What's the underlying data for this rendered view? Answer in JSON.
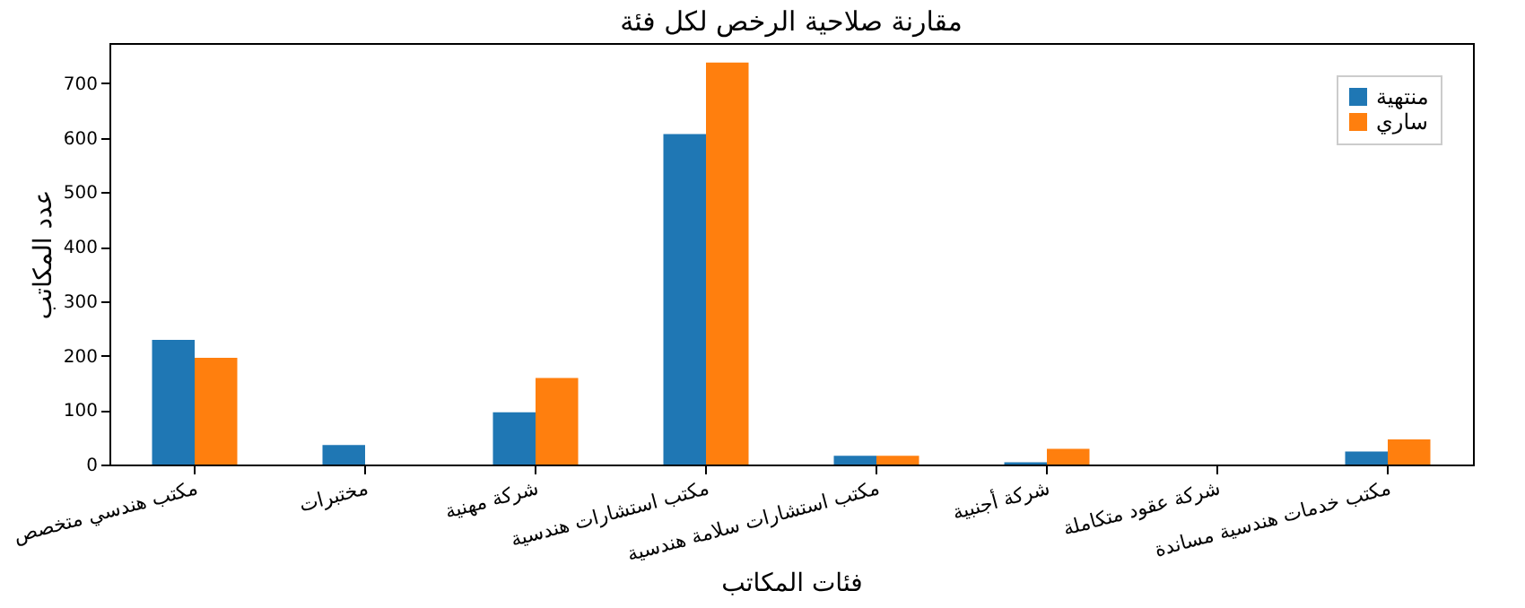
{
  "chart_data": {
    "type": "bar",
    "title": "مقارنة صلاحية الرخص لكل فئة",
    "xlabel": "فئات المكاتب",
    "ylabel": "عدد المكاتب",
    "categories": [
      "مكتب هندسي متخصص",
      "مختبرات",
      "شركة مهنية",
      "مكتب استشارات هندسية",
      "مكتب استشارات سلامة هندسية",
      "شركة أجنبية",
      "شركة عقود متكاملة",
      "مكتب خدمات هندسية مساندة"
    ],
    "series": [
      {
        "name": "منتهية",
        "color": "#1f77b4",
        "values": [
          229,
          36,
          96,
          607,
          16,
          4,
          0,
          24
        ]
      },
      {
        "name": "ساري",
        "color": "#ff7f0e",
        "values": [
          196,
          0,
          159,
          738,
          16,
          29,
          0,
          46
        ]
      }
    ],
    "ylim": [
      0,
      774
    ],
    "yticks": [
      0,
      100,
      200,
      300,
      400,
      500,
      600,
      700
    ],
    "grid": false,
    "legend": "top right"
  }
}
